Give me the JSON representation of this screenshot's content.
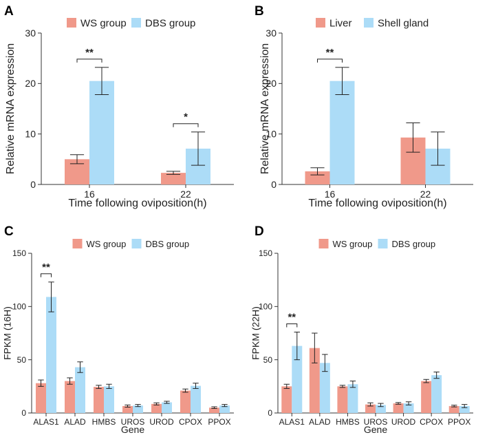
{
  "panels": [
    {
      "letter": "A",
      "chart_data": {
        "type": "bar",
        "categories": [
          "16",
          "22"
        ],
        "series": [
          {
            "name": "WS group",
            "values": [
              5.0,
              2.3
            ],
            "errors": [
              0.9,
              0.3
            ]
          },
          {
            "name": "DBS group",
            "values": [
              20.5,
              7.1
            ],
            "errors": [
              2.7,
              3.3
            ]
          }
        ],
        "xlabel": "Time following oviposition(h)",
        "ylabel": "Relative mRNA expression",
        "ylim": [
          0,
          30
        ],
        "yticks": [
          0,
          10,
          20,
          30
        ],
        "grid": false,
        "legend_position": "top",
        "annotations": [
          {
            "category": "16",
            "text": "**"
          },
          {
            "category": "22",
            "text": "*"
          }
        ]
      }
    },
    {
      "letter": "B",
      "chart_data": {
        "type": "bar",
        "categories": [
          "16",
          "22"
        ],
        "series": [
          {
            "name": "Liver",
            "values": [
              2.6,
              9.3
            ],
            "errors": [
              0.7,
              2.9
            ]
          },
          {
            "name": "Shell gland",
            "values": [
              20.5,
              7.1
            ],
            "errors": [
              2.7,
              3.3
            ]
          }
        ],
        "xlabel": "Time following oviposition(h)",
        "ylabel": "Relative mRNA expression",
        "ylim": [
          0,
          30
        ],
        "yticks": [
          0,
          10,
          20,
          30
        ],
        "grid": false,
        "legend_position": "top",
        "annotations": [
          {
            "category": "16",
            "text": "**"
          }
        ]
      }
    },
    {
      "letter": "C",
      "chart_data": {
        "type": "bar",
        "categories": [
          "ALAS1",
          "ALAD",
          "HMBS",
          "UROS",
          "UROD",
          "CPOX",
          "PPOX"
        ],
        "series": [
          {
            "name": "WS group",
            "values": [
              28,
              30,
              24.5,
              6.5,
              8.5,
              21,
              5
            ],
            "errors": [
              3,
              3,
              1.5,
              1,
              1,
              1.5,
              0.8
            ]
          },
          {
            "name": "DBS group",
            "values": [
              109,
              43,
              25,
              7,
              10,
              25.5,
              7
            ],
            "errors": [
              14,
              5,
              2,
              1,
              1,
              2.5,
              1
            ]
          }
        ],
        "xlabel": "Gene",
        "ylabel": "FPKM (16H)",
        "ylim": [
          0,
          150
        ],
        "yticks": [
          0,
          50,
          100,
          150
        ],
        "grid": false,
        "legend_position": "top",
        "annotations": [
          {
            "category": "ALAS1",
            "text": "**"
          }
        ]
      }
    },
    {
      "letter": "D",
      "chart_data": {
        "type": "bar",
        "categories": [
          "ALAS1",
          "ALAD",
          "HMBS",
          "UROS",
          "UROD",
          "CPOX",
          "PPOX"
        ],
        "series": [
          {
            "name": "WS group",
            "values": [
              25,
              61,
              25,
              8,
              9,
              30,
              6.5
            ],
            "errors": [
              2,
              14,
              1,
              1.5,
              0.8,
              1.5,
              0.8
            ]
          },
          {
            "name": "DBS group",
            "values": [
              63,
              47,
              27,
              7.5,
              9,
              35.5,
              6.5
            ],
            "errors": [
              13,
              8,
              3,
              1.5,
              1.5,
              3,
              1.5
            ]
          }
        ],
        "xlabel": "Gene",
        "ylabel": "FPKM (22H)",
        "ylim": [
          0,
          150
        ],
        "yticks": [
          0,
          50,
          100,
          150
        ],
        "grid": false,
        "legend_position": "top",
        "annotations": [
          {
            "category": "ALAS1",
            "text": "**"
          }
        ]
      }
    }
  ],
  "colors": {
    "series1": "#f0998a",
    "series2": "#acdcf7",
    "axis": "#333333",
    "text": "#222222"
  }
}
